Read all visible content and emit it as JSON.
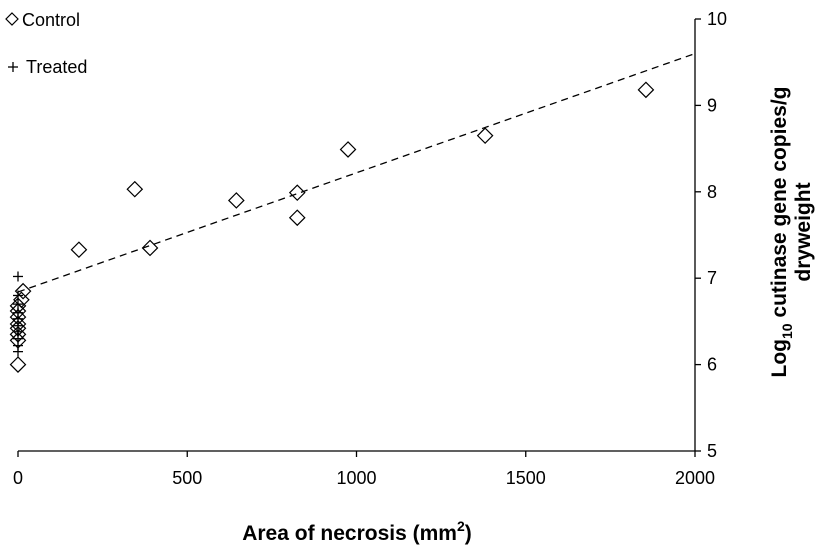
{
  "chart_data": {
    "type": "scatter",
    "xlabel": "Area of necrosis (mm",
    "xlabel_sup": "2",
    "xlabel_end": ")",
    "ylabel_pre": "Log",
    "ylabel_sub": "10",
    "ylabel_post": " cutinase gene copies/g",
    "ylabel_line2": "dryweight",
    "xlim": [
      0,
      2000
    ],
    "ylim": [
      5,
      10
    ],
    "x_ticks": [
      0,
      500,
      1000,
      1500,
      2000
    ],
    "x_tick_labels": [
      "0",
      "500",
      "1000",
      "1500",
      "2000"
    ],
    "y_ticks": [
      5,
      6,
      7,
      8,
      9,
      10
    ],
    "y_tick_labels": [
      "5",
      "6",
      "7",
      "8",
      "9",
      "10"
    ],
    "y_axis_side": "right",
    "legend_position": "top-left",
    "grid": false,
    "series": [
      {
        "name": "Control",
        "marker": "diamond",
        "points": [
          [
            0,
            6.0
          ],
          [
            0,
            6.28
          ],
          [
            0,
            6.35
          ],
          [
            0,
            6.42
          ],
          [
            0,
            6.47
          ],
          [
            0,
            6.55
          ],
          [
            0,
            6.62
          ],
          [
            0,
            6.68
          ],
          [
            10,
            6.75
          ],
          [
            15,
            6.85
          ],
          [
            180,
            7.33
          ],
          [
            345,
            8.03
          ],
          [
            390,
            7.35
          ],
          [
            645,
            7.9
          ],
          [
            825,
            7.99
          ],
          [
            825,
            7.7
          ],
          [
            975,
            8.49
          ],
          [
            1380,
            8.65
          ],
          [
            1855,
            9.18
          ]
        ]
      },
      {
        "name": "Treated",
        "marker": "plus",
        "points": [
          [
            0,
            6.15
          ],
          [
            0,
            6.22
          ],
          [
            0,
            6.3
          ],
          [
            0,
            6.38
          ],
          [
            0,
            6.45
          ],
          [
            0,
            6.53
          ],
          [
            0,
            6.6
          ],
          [
            0,
            6.7
          ],
          [
            0,
            6.8
          ],
          [
            0,
            7.02
          ]
        ]
      }
    ],
    "trendline": {
      "style": "dashed",
      "x": [
        0,
        2000
      ],
      "y": [
        6.84,
        9.6
      ]
    }
  }
}
